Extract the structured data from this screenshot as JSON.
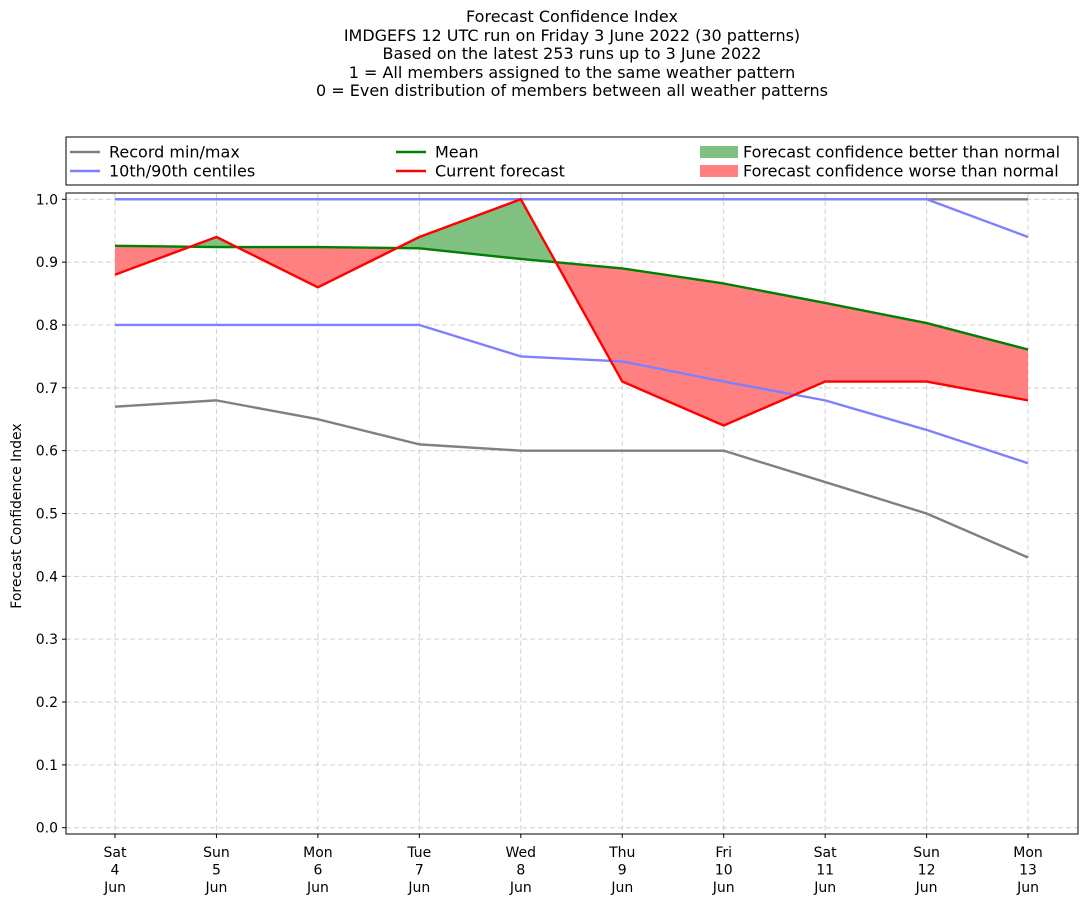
{
  "chart_data": {
    "type": "line",
    "title_lines": [
      "Forecast Confidence Index",
      "IMDGEFS 12 UTC run on Friday 3 June 2022 (30 patterns)",
      "Based on the latest 253 runs up to 3 June 2022",
      "1 = All members assigned to the same weather pattern",
      "0 = Even distribution of members between all weather patterns"
    ],
    "ylabel": "Forecast Confidence Index",
    "xlabel": "",
    "ylim": [
      -0.01,
      1.01
    ],
    "yticks": [
      "0.0",
      "0.1",
      "0.2",
      "0.3",
      "0.4",
      "0.5",
      "0.6",
      "0.7",
      "0.8",
      "0.9",
      "1.0"
    ],
    "categories": [
      [
        "Sat",
        "4",
        "Jun"
      ],
      [
        "Sun",
        "5",
        "Jun"
      ],
      [
        "Mon",
        "6",
        "Jun"
      ],
      [
        "Tue",
        "7",
        "Jun"
      ],
      [
        "Wed",
        "8",
        "Jun"
      ],
      [
        "Thu",
        "9",
        "Jun"
      ],
      [
        "Fri",
        "10",
        "Jun"
      ],
      [
        "Sat",
        "11",
        "Jun"
      ],
      [
        "Sun",
        "12",
        "Jun"
      ],
      [
        "Mon",
        "13",
        "Jun"
      ]
    ],
    "grid": true,
    "legend_position": "top",
    "legend": [
      {
        "label": "Record min/max",
        "kind": "line",
        "color": "#808080"
      },
      {
        "label": "10th/90th centiles",
        "kind": "line",
        "color": "#8080ff"
      },
      {
        "label": "Mean",
        "kind": "line",
        "color": "#008000"
      },
      {
        "label": "Current forecast",
        "kind": "line",
        "color": "#ff0000"
      },
      {
        "label": "Forecast confidence better than normal",
        "kind": "patch",
        "color": "#80c080"
      },
      {
        "label": "Forecast confidence worse than normal",
        "kind": "patch",
        "color": "#ff8080"
      }
    ],
    "series": {
      "record_max": [
        1.0,
        1.0,
        1.0,
        1.0,
        1.0,
        1.0,
        1.0,
        1.0,
        1.0,
        1.0
      ],
      "record_min": [
        0.67,
        0.68,
        0.65,
        0.61,
        0.6,
        0.6,
        0.6,
        0.55,
        0.5,
        0.43
      ],
      "p90": [
        1.0,
        1.0,
        1.0,
        1.0,
        1.0,
        1.0,
        1.0,
        1.0,
        1.0,
        0.94
      ],
      "p10": [
        0.8,
        0.8,
        0.8,
        0.8,
        0.75,
        0.742,
        0.71,
        0.68,
        0.633,
        0.58
      ],
      "mean": [
        0.926,
        0.924,
        0.924,
        0.922,
        0.905,
        0.89,
        0.866,
        0.835,
        0.803,
        0.761
      ],
      "current": [
        0.88,
        0.94,
        0.86,
        0.94,
        1.0,
        0.71,
        0.64,
        0.71,
        0.71,
        0.68
      ]
    },
    "colors": {
      "record": "#808080",
      "centile": "#8080ff",
      "mean": "#008000",
      "current": "#ff0000",
      "better": "#80c080",
      "worse": "#ff8080",
      "grid": "#d0d0d0"
    }
  }
}
